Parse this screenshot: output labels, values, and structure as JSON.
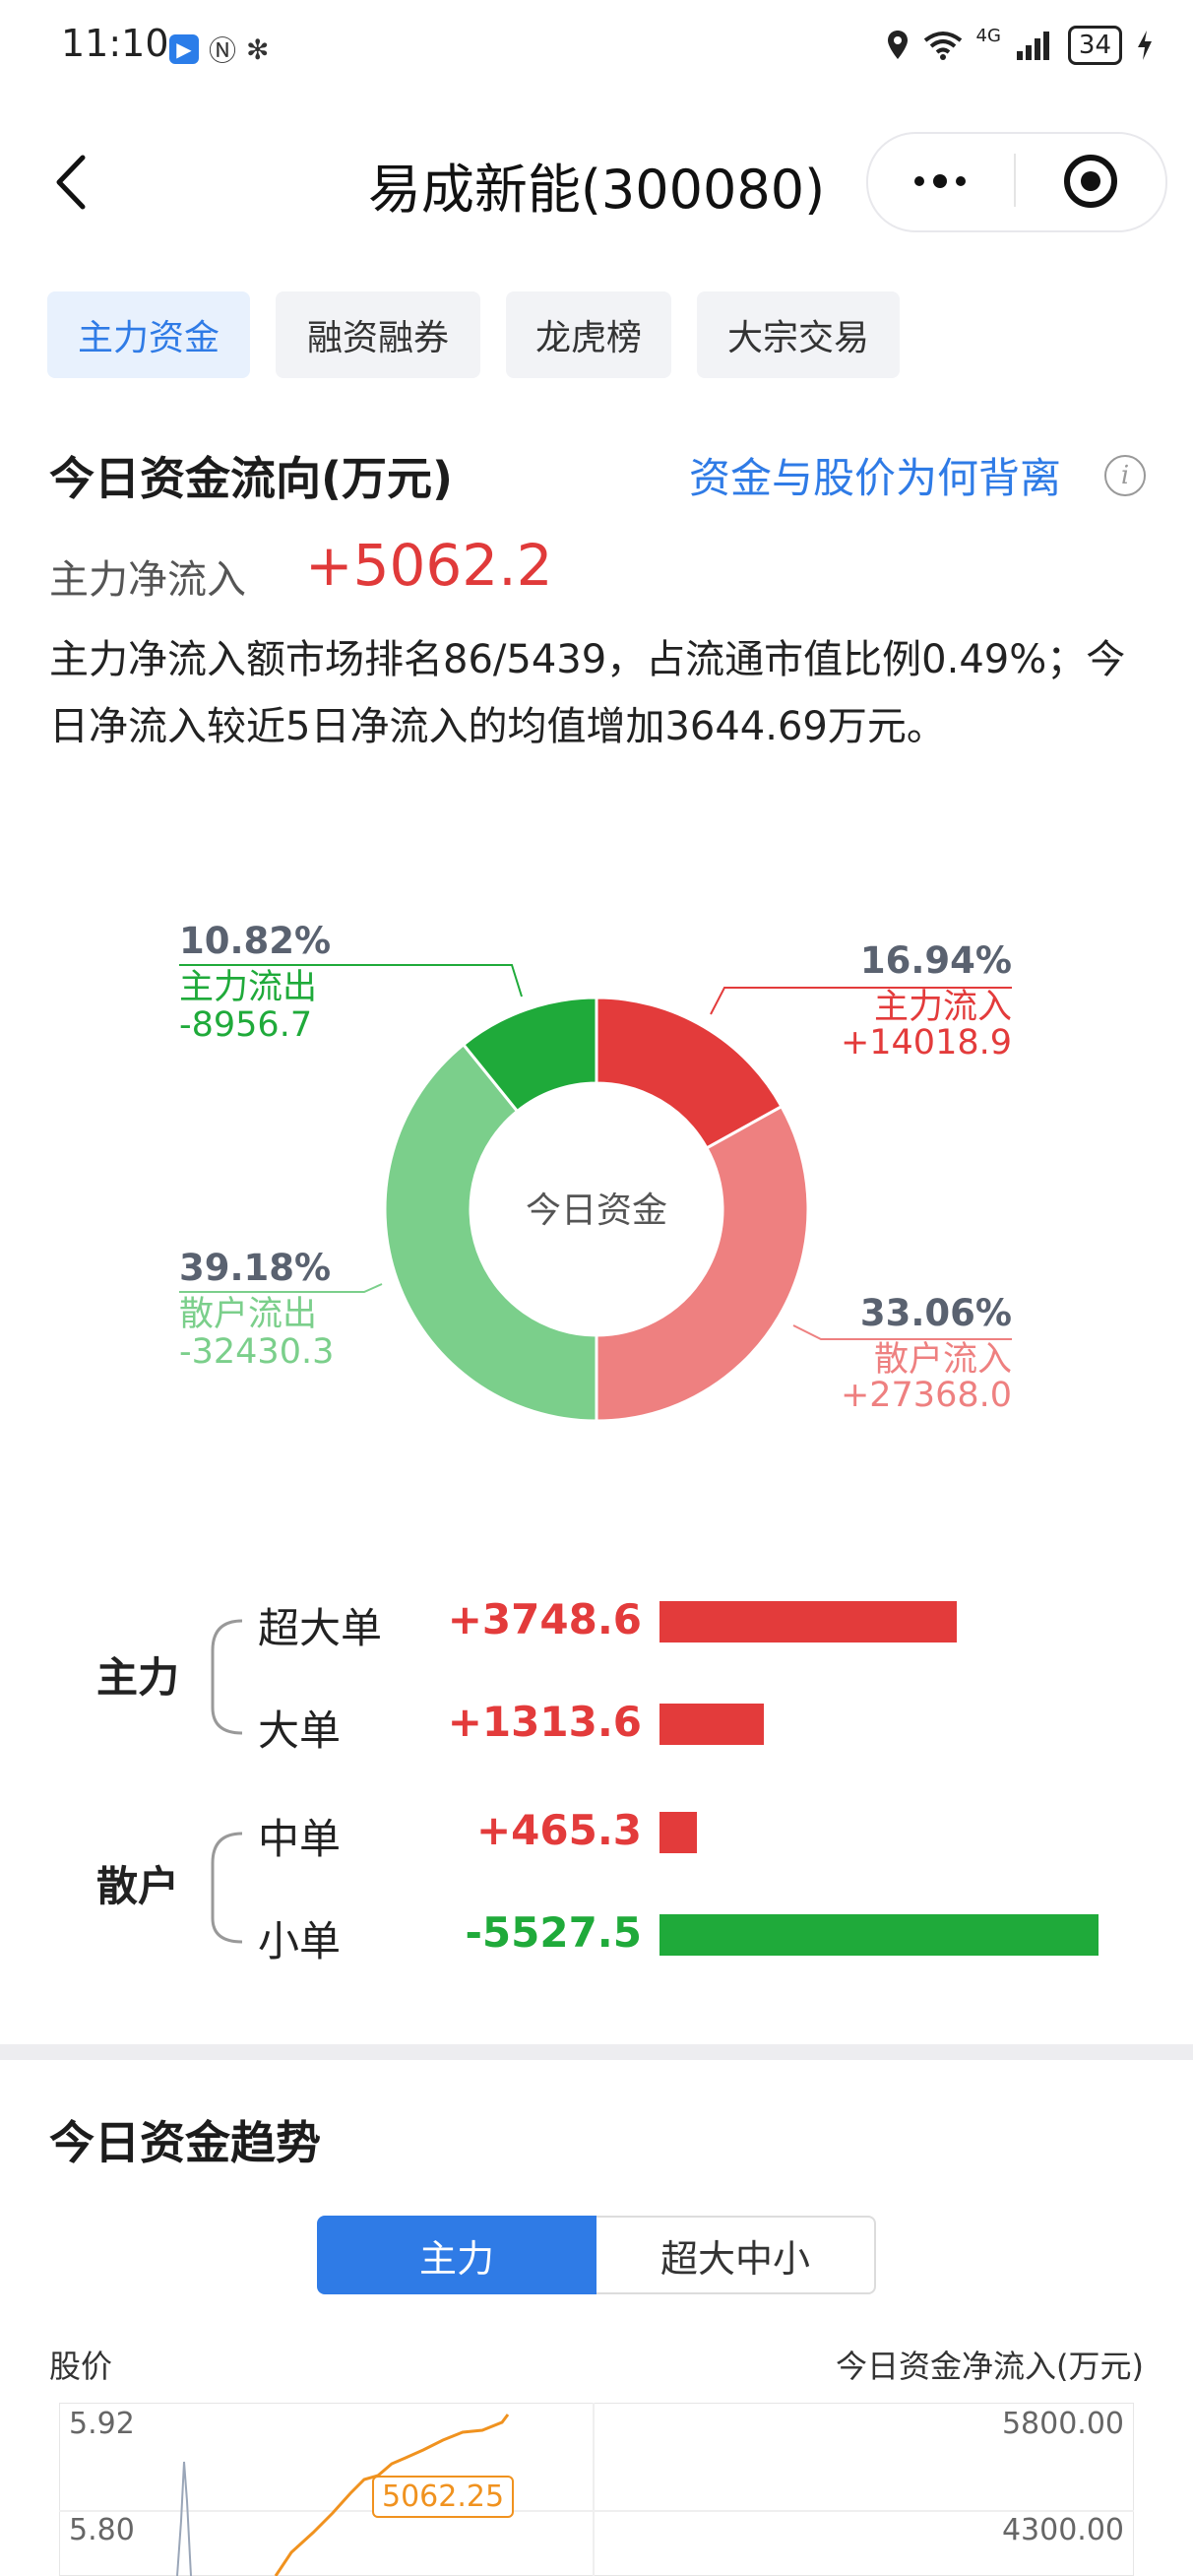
{
  "status_bar": {
    "time": "11:10",
    "network": "4G",
    "battery": "34"
  },
  "header": {
    "title": "易成新能(300080)"
  },
  "tabs": [
    {
      "label": "主力资金",
      "active": true
    },
    {
      "label": "融资融券",
      "active": false
    },
    {
      "label": "龙虎榜",
      "active": false
    },
    {
      "label": "大宗交易",
      "active": false
    }
  ],
  "flow": {
    "title": "今日资金流向(万元)",
    "link": "资金与股价为何背离",
    "net_label": "主力净流入",
    "net_value": "+5062.2",
    "description": "主力净流入额市场排名86/5439，占流通市值比例0.49%；今日净流入较近5日净流入的均值增加3644.69万元。"
  },
  "donut": {
    "center_label": "今日资金",
    "colors": {
      "main_in": "#e33b3b",
      "retail_in": "#ee8080",
      "retail_out": "#7bcf8b",
      "main_out": "#1faa3a"
    },
    "segments": [
      {
        "key": "main_in",
        "label": "主力流入",
        "percent": "16.94%",
        "value": "+14018.9",
        "fraction": 0.1694
      },
      {
        "key": "retail_in",
        "label": "散户流入",
        "percent": "33.06%",
        "value": "+27368.0",
        "fraction": 0.3306
      },
      {
        "key": "retail_out",
        "label": "散户流出",
        "percent": "39.18%",
        "value": "-32430.3",
        "fraction": 0.3918
      },
      {
        "key": "main_out",
        "label": "主力流出",
        "percent": "10.82%",
        "value": "-8956.7",
        "fraction": 0.1082
      }
    ]
  },
  "orders": {
    "groups": [
      {
        "label": "主力",
        "rows": [
          {
            "label": "超大单",
            "value": "+3748.6",
            "amount": 3748.6
          },
          {
            "label": "大单",
            "value": "+1313.6",
            "amount": 1313.6
          }
        ]
      },
      {
        "label": "散户",
        "rows": [
          {
            "label": "中单",
            "value": "+465.3",
            "amount": 465.3
          },
          {
            "label": "小单",
            "value": "-5527.5",
            "amount": -5527.5
          }
        ]
      }
    ],
    "colors": {
      "positive": "#e33b3b",
      "negative": "#1faa3a"
    }
  },
  "trend": {
    "title": "今日资金趋势",
    "segments": [
      {
        "label": "主力",
        "active": true
      },
      {
        "label": "超大中小",
        "active": false
      }
    ],
    "left_axis_title": "股价",
    "right_axis_title": "今日资金净流入(万元)",
    "left_ticks": [
      "5.92",
      "5.80"
    ],
    "right_ticks": [
      "5800.00",
      "4300.00"
    ],
    "tooltip_value": "5062.25",
    "line_color": "#f0921f"
  }
}
